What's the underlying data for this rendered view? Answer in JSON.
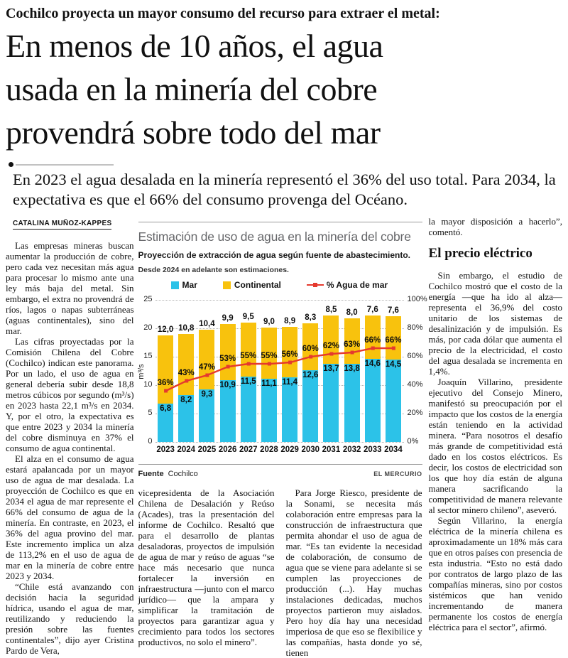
{
  "header": {
    "kicker": "Cochilco proyecta un mayor consumo del recurso para extraer el metal:",
    "headline_lines": [
      "En menos de 10 años, el agua",
      "usada en la minería del cobre",
      "provendrá sobre todo del mar"
    ],
    "subhead": "En 2023 el agua desalada en la minería representó el 36% del uso total. Para 2034, la expectativa es que el 66% del consumo provenga del Océano.",
    "byline": "CATALINA MUÑOZ-KAPPES"
  },
  "article": {
    "left": [
      "Las empresas mineras buscan aumentar la producción de cobre, pero cada vez necesitan más agua para procesar lo mismo ante una ley más baja del metal. Sin embargo, el extra no provendrá de ríos, lagos o napas subterráneas (aguas continentales), sino del mar.",
      "Las cifras proyectadas por la Comisión Chilena del Cobre (Cochilco) indican este panorama. Por un lado, el uso de agua en general debería subir desde 18,8 metros cúbicos por segundo (m³/s) en 2023 hasta 22,1 m³/s en 2034. Y, por el otro, la expectativa es que entre 2023 y 2034 la minería del cobre disminuya en 37% el consumo de agua continental.",
      "El alza en el consumo de agua estará apalancada por un mayor uso de agua de mar desalada. La proyección de Cochilco es que en 2034 el agua de mar represente el 66% del consumo de agua de la minería. En contraste, en 2023, el 36% del agua provino del mar. Este incremento implica un alza de 113,2% en el uso de agua de mar en la minería de cobre entre 2023 y 2034.",
      "“Chile está avanzando con decisión hacia la seguridad hídrica, usando el agua de mar, reutilizando y reduciendo la presión sobre las fuentes continentales”, dijo ayer Cristina Pardo de Vera,"
    ],
    "mid_left": "vicepresidenta de la Asociación Chilena de Desalación y Reúso (Acades), tras la presentación del informe de Cochilco. Resaltó que para el desarrollo de plantas desaladoras, proyectos de impulsión de agua de mar y reúso de aguas “se hace más necesario que nunca fortalecer la inversión en infraestructura —junto con el marco jurídico— que la ampara y simplificar la tramitación de proyectos para garantizar agua y crecimiento para todos los sectores productivos, no solo el minero”.",
    "mid_right": "Para Jorge Riesco, presidente de la Sonami, se necesita más colaboración entre empresas para la construcción de infraestructura que permita ahondar el uso de agua de mar. “Es tan evidente la necesidad de colaboración, de consumo de agua que se viene para adelante si se cumplen las proyecciones de producción (...). Hay muchas instalaciones dedicadas, muchos proyectos partieron muy aislados. Pero hoy día hay una necesidad imperiosa de que eso se flexibilice y las compañías, hasta donde yo sé, tienen",
    "right_lead": "la mayor disposición a hacerlo”, comentó.",
    "right_heading": "El precio eléctrico",
    "right": [
      "Sin embargo, el estudio de Cochilco mostró que el costo de la energía —que ha ido al alza— representa el 36,9% del costo unitario de los sistemas de desalinización y de impulsión. Es más, por cada dólar que aumenta el precio de la electricidad, el costo del agua desalada se incrementa en 1,4%.",
      "Joaquín Villarino, presidente ejecutivo del Consejo Minero, manifestó su preocupación por el impacto que los costos de la energía están teniendo en la actividad minera. “Para nosotros el desafío más grande de competitividad está dado en los costos eléctricos. Es decir, los costos de electricidad son los que hoy día están de alguna manera sacrificando la competitividad de manera relevante al sector minero chileno”, aseveró.",
      "Según Villarino, la energía eléctrica de la minería chilena es aproximadamente un 18% más cara que en otros países con presencia de esta industria. “Esto no está dado por contratos de largo plazo de las compañías mineras, sino por costos sistémicos que han venido incrementando de manera permanente los costos de energía eléctrica para el sector”, afirmó."
    ]
  },
  "chart_data": {
    "type": "bar",
    "subtype": "stacked-bar-with-line",
    "title": "Estimación de uso de agua en la minería del cobre",
    "subtitle": "Proyección de extracción de agua según fuente de abastecimiento.",
    "note": "Desde 2024 en adelante son estimaciones.",
    "categories": [
      2023,
      2024,
      2025,
      2026,
      2027,
      2028,
      2029,
      2030,
      2031,
      2032,
      2033,
      2034
    ],
    "series": [
      {
        "name": "Mar",
        "color": "#2CC2E8",
        "values": [
          6.8,
          8.2,
          9.3,
          10.9,
          11.5,
          11.1,
          11.4,
          12.6,
          13.7,
          13.8,
          14.6,
          14.5
        ]
      },
      {
        "name": "Continental",
        "color": "#F8C20D",
        "values": [
          12.0,
          10.8,
          10.4,
          9.9,
          9.5,
          9.0,
          8.9,
          8.3,
          8.5,
          8.0,
          7.6,
          7.6
        ]
      },
      {
        "name": "% Agua de mar",
        "type": "line",
        "color": "#E5392E",
        "values": [
          36,
          43,
          47,
          53,
          55,
          55,
          56,
          60,
          62,
          63,
          66,
          66
        ]
      }
    ],
    "ylabel": "m³/s",
    "left_axis": {
      "ticks": [
        0,
        5,
        10,
        15,
        20,
        25
      ],
      "max": 25
    },
    "right_axis": {
      "ticks": [
        "0%",
        "20%",
        "40%",
        "60%",
        "80%",
        "100%"
      ],
      "max": 100
    },
    "grid": "dotted-horizontal",
    "legend_position": "top",
    "source_label": "Fuente",
    "source": "Cochilco",
    "credit": "EL MERCURIO"
  }
}
